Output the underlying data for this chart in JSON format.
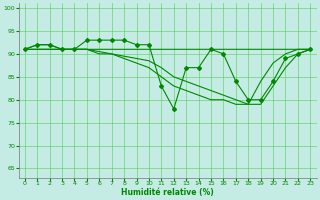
{
  "title": "",
  "xlabel": "Humidité relative (%)",
  "ylabel": "",
  "bg_color": "#c5ece4",
  "grid_color": "#55cc55",
  "line_color": "#008800",
  "xlim": [
    -0.5,
    23.5
  ],
  "ylim": [
    63,
    101
  ],
  "yticks": [
    65,
    70,
    75,
    80,
    85,
    90,
    95,
    100
  ],
  "xticks": [
    0,
    1,
    2,
    3,
    4,
    5,
    6,
    7,
    8,
    9,
    10,
    11,
    12,
    13,
    14,
    15,
    16,
    17,
    18,
    19,
    20,
    21,
    22,
    23
  ],
  "series_main": [
    91,
    92,
    92,
    91,
    91,
    93,
    93,
    93,
    93,
    92,
    92,
    83,
    78,
    87,
    87,
    91,
    90,
    84,
    80,
    80,
    84,
    89,
    90,
    91
  ],
  "series_flat": [
    91,
    92,
    92,
    91,
    91,
    91,
    91,
    91,
    91,
    91,
    91,
    91,
    91,
    91,
    91,
    91,
    91,
    91,
    91,
    91,
    91,
    91,
    91,
    91
  ],
  "series_decline1": [
    91,
    91,
    91,
    91,
    91,
    91,
    90.5,
    90,
    89.5,
    89,
    88.5,
    87,
    85,
    84,
    83,
    82,
    81,
    80,
    79,
    79,
    83,
    87,
    90,
    91
  ],
  "series_decline2": [
    91,
    91,
    91,
    91,
    91,
    91,
    90,
    90,
    89,
    88,
    87,
    85,
    83,
    82,
    81,
    80,
    80,
    79,
    79,
    84,
    88,
    90,
    91,
    91
  ]
}
